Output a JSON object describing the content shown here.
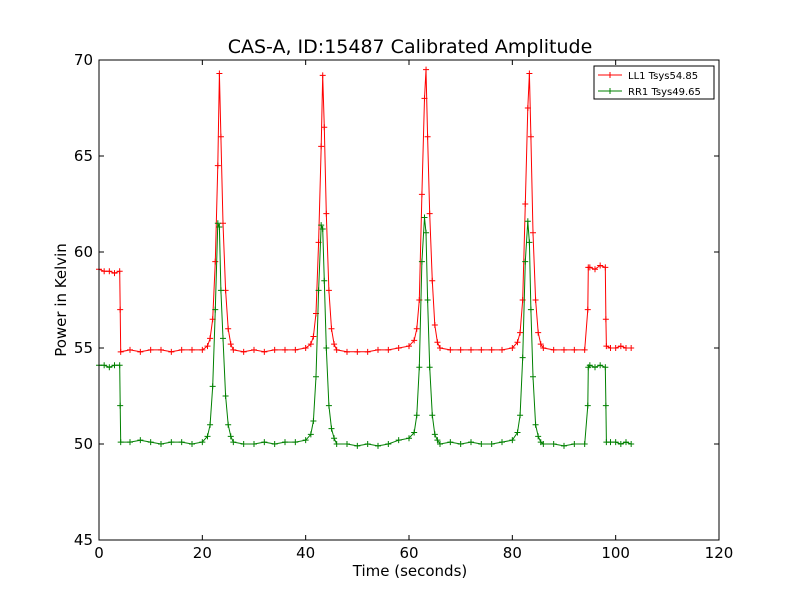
{
  "chart_data": {
    "type": "line",
    "title": "CAS-A, ID:15487 Calibrated Amplitude",
    "xlabel": "Time (seconds)",
    "ylabel": "Power in Kelvin",
    "xlim": [
      0,
      120
    ],
    "ylim": [
      45,
      70
    ],
    "xticks": [
      "0",
      "20",
      "40",
      "60",
      "80",
      "100",
      "120"
    ],
    "yticks": [
      "45",
      "50",
      "55",
      "60",
      "65",
      "70"
    ],
    "grid": false,
    "legend_position": "top-right",
    "marker": "+",
    "series": [
      {
        "name": "LL1 Tsys54.85",
        "color": "#ff0000",
        "x": [
          0,
          1,
          2,
          3,
          4,
          4.1,
          4.2,
          6,
          8,
          10,
          12,
          14,
          16,
          18,
          20,
          21,
          21.5,
          22,
          22.5,
          23,
          23.3,
          23.6,
          24,
          24.5,
          25,
          25.5,
          26,
          28,
          30,
          32,
          34,
          36,
          38,
          40,
          41,
          41.5,
          42,
          42.5,
          43,
          43.3,
          43.6,
          44,
          44.5,
          45,
          45.5,
          46,
          48,
          50,
          52,
          54,
          56,
          58,
          60,
          61,
          61.5,
          62,
          62.5,
          63,
          63.3,
          63.6,
          64,
          64.5,
          65,
          65.5,
          66,
          68,
          70,
          72,
          74,
          76,
          78,
          80,
          81,
          81.5,
          82,
          82.5,
          83,
          83.3,
          83.6,
          84,
          84.5,
          85,
          85.5,
          86,
          88,
          90,
          92,
          94,
          94.6,
          94.7,
          95,
          96,
          97,
          98,
          98.1,
          98.2,
          99,
          100,
          101,
          102,
          103
        ],
        "y": [
          59.1,
          59.0,
          59.0,
          58.9,
          59.0,
          57.0,
          54.8,
          54.9,
          54.8,
          54.9,
          54.9,
          54.8,
          54.9,
          54.9,
          54.9,
          55.1,
          55.5,
          56.5,
          59.5,
          64.5,
          69.3,
          66.0,
          61.5,
          58.0,
          56.0,
          55.2,
          54.9,
          54.8,
          54.9,
          54.8,
          54.9,
          54.9,
          54.9,
          55.0,
          55.2,
          55.6,
          56.8,
          60.5,
          65.5,
          69.2,
          66.5,
          62.0,
          58.0,
          56.0,
          55.2,
          54.9,
          54.8,
          54.8,
          54.8,
          54.9,
          54.9,
          55.0,
          55.1,
          55.4,
          56.0,
          57.5,
          63.0,
          68.0,
          69.5,
          66.0,
          62.0,
          58.5,
          56.2,
          55.3,
          55.0,
          54.9,
          54.9,
          54.9,
          54.9,
          54.9,
          54.9,
          55.0,
          55.3,
          55.8,
          57.5,
          62.5,
          67.5,
          69.3,
          66.0,
          61.0,
          57.5,
          55.8,
          55.2,
          55.0,
          54.9,
          54.9,
          54.9,
          54.9,
          57.0,
          59.2,
          59.2,
          59.1,
          59.3,
          59.2,
          56.5,
          55.1,
          55.0,
          55.0,
          55.1,
          55.0,
          55.0
        ]
      },
      {
        "name": "RR1 Tsys49.65",
        "color": "#008000",
        "x": [
          0,
          1,
          2,
          3,
          4,
          4.1,
          4.2,
          6,
          8,
          10,
          12,
          14,
          16,
          18,
          20,
          21,
          21.5,
          22,
          22.5,
          23,
          23.3,
          23.6,
          24,
          24.5,
          25,
          25.5,
          26,
          28,
          30,
          32,
          34,
          36,
          38,
          40,
          41,
          41.5,
          42,
          42.5,
          43,
          43.3,
          43.6,
          44,
          44.5,
          45,
          45.5,
          46,
          48,
          50,
          52,
          54,
          56,
          58,
          60,
          61,
          61.5,
          62,
          62.5,
          63,
          63.3,
          63.6,
          64,
          64.5,
          65,
          65.5,
          66,
          68,
          70,
          72,
          74,
          76,
          78,
          80,
          81,
          81.5,
          82,
          82.5,
          83,
          83.3,
          83.6,
          84,
          84.5,
          85,
          85.5,
          86,
          88,
          90,
          92,
          94,
          94.6,
          94.7,
          95,
          96,
          97,
          98,
          98.1,
          98.2,
          99,
          100,
          101,
          102,
          103
        ],
        "y": [
          54.1,
          54.1,
          54.0,
          54.1,
          54.1,
          52.0,
          50.1,
          50.1,
          50.2,
          50.1,
          50.0,
          50.1,
          50.1,
          50.0,
          50.1,
          50.4,
          51.0,
          53.0,
          57.0,
          61.5,
          61.3,
          58.0,
          55.5,
          52.5,
          51.0,
          50.4,
          50.1,
          50.0,
          50.0,
          50.1,
          50.0,
          50.1,
          50.1,
          50.2,
          50.5,
          51.2,
          53.5,
          58.0,
          61.4,
          61.2,
          58.5,
          55.0,
          52.0,
          50.8,
          50.3,
          50.0,
          50.0,
          49.9,
          50.0,
          49.9,
          50.0,
          50.2,
          50.3,
          50.6,
          51.5,
          54.0,
          59.5,
          61.8,
          61.0,
          57.5,
          54.0,
          51.5,
          50.5,
          50.2,
          50.0,
          50.1,
          50.0,
          50.1,
          50.0,
          50.0,
          50.1,
          50.2,
          50.6,
          51.5,
          54.5,
          59.5,
          61.6,
          60.5,
          57.0,
          53.5,
          51.0,
          50.4,
          50.1,
          50.0,
          50.0,
          49.9,
          50.0,
          50.0,
          52.0,
          54.0,
          54.1,
          54.0,
          54.1,
          54.0,
          52.0,
          50.1,
          50.1,
          50.1,
          50.0,
          50.1,
          50.0
        ]
      }
    ]
  }
}
